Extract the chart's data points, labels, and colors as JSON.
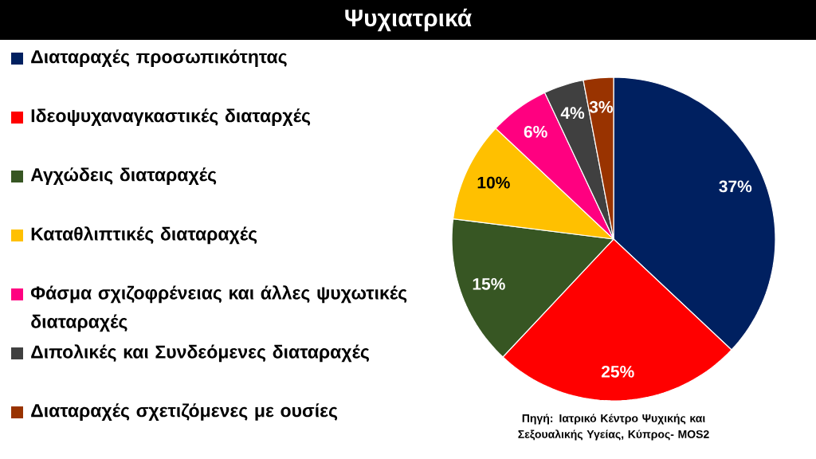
{
  "chart_data": {
    "type": "pie",
    "title": "Ψυχιατρικά",
    "categories": [
      "Διαταραχές προσωπικότητας",
      "Ιδεοψυχαναγκαστικές διαταρχές",
      "Αγχώδεις διαταραχές",
      "Καταθλιπτικές διαταραχές",
      "Φάσμα σχιζοφρένειας και άλλες ψυχωτικές διαταραχές",
      "Διπολικές και Συνδεόμενες διαταραχές",
      "Διαταραχές σχετιζόμενες με ουσίες"
    ],
    "values": [
      37,
      25,
      15,
      10,
      6,
      4,
      3
    ],
    "value_labels": [
      "37%",
      "25%",
      "15%",
      "10%",
      "6%",
      "4%",
      "3%"
    ],
    "colors": [
      "#002060",
      "#ff0000",
      "#375623",
      "#ffc000",
      "#ff0080",
      "#404040",
      "#993300"
    ],
    "legend": "left",
    "annotations": [
      "Πηγή: Ιατρικό Κέντρο Ψυχικής και Σεξουαλικής Υγείας, Κύπρος- MOS2"
    ]
  }
}
